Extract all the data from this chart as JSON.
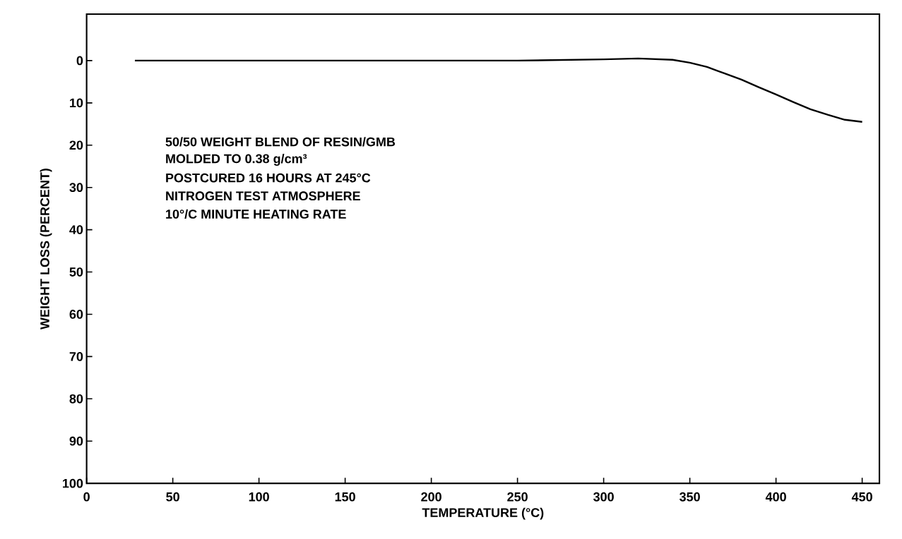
{
  "chart_data": {
    "type": "line",
    "xlabel": "TEMPERATURE (°C)",
    "ylabel": "WEIGHT LOSS (PERCENT)",
    "x": [
      28,
      50,
      100,
      150,
      200,
      250,
      300,
      320,
      340,
      350,
      360,
      370,
      380,
      390,
      400,
      410,
      420,
      430,
      440,
      450
    ],
    "values": [
      0,
      0,
      0,
      0,
      0,
      0,
      -0.3,
      -0.5,
      -0.2,
      0.5,
      1.5,
      3,
      4.5,
      6.3,
      8,
      9.8,
      11.5,
      12.8,
      14,
      14.5
    ],
    "color": "#000000",
    "marker": "none",
    "line_style": "solid",
    "grid": false,
    "xlim": [
      0,
      460
    ],
    "ylim": [
      100,
      -11
    ],
    "xticks": [
      0,
      50,
      100,
      150,
      200,
      250,
      300,
      350,
      400,
      450
    ],
    "yticks": [
      0,
      10,
      20,
      30,
      40,
      50,
      60,
      70,
      80,
      90,
      100
    ],
    "annotations": [
      "50/50 WEIGHT BLEND OF RESIN/GMB",
      "MOLDED TO 0.38 g/cm³",
      "POSTCURED 16 HOURS AT 245°C",
      "NITROGEN TEST ATMOSPHERE",
      "10°/C MINUTE HEATING RATE"
    ]
  }
}
